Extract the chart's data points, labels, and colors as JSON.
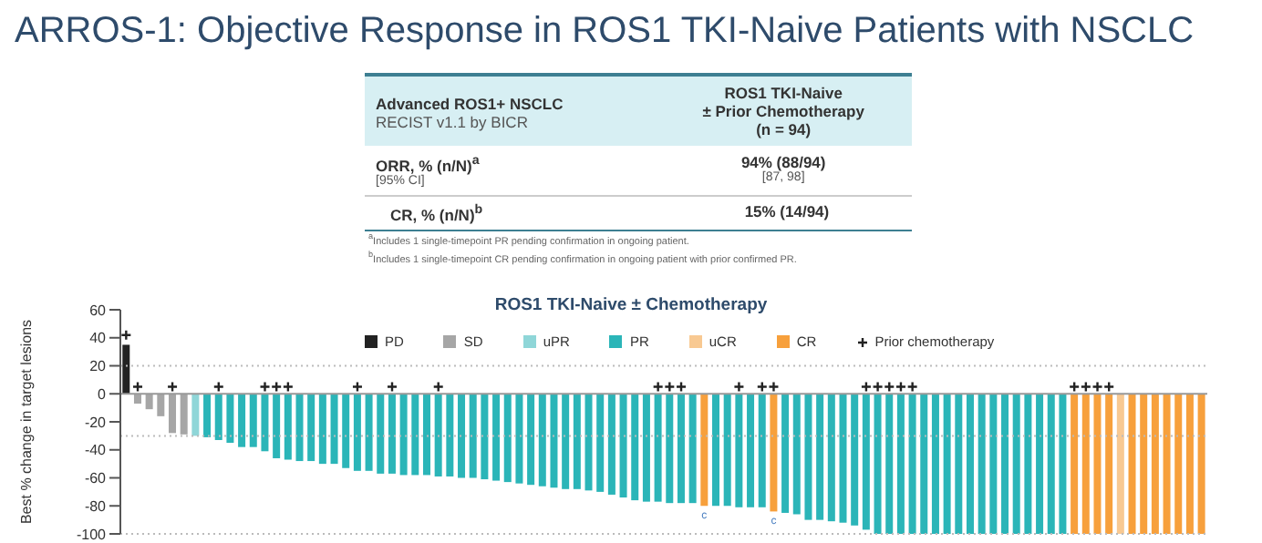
{
  "chart_data": {
    "type": "bar",
    "title": "ARROS-1: Objective Response in ROS1 TKI-Naive Patients with NSCLC",
    "subtitle": "ROS1 TKI-Naive ± Chemotherapy",
    "ylabel": "Best % change in target lesions",
    "categories": [
      null,
      null,
      null,
      null,
      null,
      null,
      null,
      null,
      null,
      null,
      null,
      null,
      null,
      null,
      null,
      null,
      null,
      null,
      null,
      null,
      null,
      null,
      null,
      null,
      null,
      null,
      null,
      null,
      null,
      null,
      null,
      null,
      null,
      null,
      null,
      null,
      null,
      null,
      null,
      null,
      null,
      null,
      null,
      null,
      null,
      null,
      null,
      null,
      null,
      null,
      null,
      null,
      null,
      null,
      null,
      null,
      null,
      null,
      null,
      null,
      null,
      null,
      null,
      null,
      null,
      null,
      null,
      null,
      null,
      null,
      null,
      null,
      null,
      null,
      null,
      null,
      null,
      null,
      null,
      null,
      null,
      null,
      null,
      null,
      null,
      null,
      null,
      null,
      null,
      null,
      null,
      null,
      null,
      null
    ],
    "stacked": true,
    "series": [
      {
        "name": "PD",
        "color": "#222222",
        "values": [
          35,
          null,
          null,
          null,
          null,
          null,
          null,
          null,
          null,
          null,
          null,
          null,
          null,
          null,
          null,
          null,
          null,
          null,
          null,
          null,
          null,
          null,
          null,
          null,
          null,
          null,
          null,
          null,
          null,
          null,
          null,
          null,
          null,
          null,
          null,
          null,
          null,
          null,
          null,
          null,
          null,
          null,
          null,
          null,
          null,
          null,
          null,
          null,
          null,
          null,
          null,
          null,
          null,
          null,
          null,
          null,
          null,
          null,
          null,
          null,
          null,
          null,
          null,
          null,
          null,
          null,
          null,
          null,
          null,
          null,
          null,
          null,
          null,
          null,
          null,
          null,
          null,
          null,
          null,
          null,
          null,
          null,
          null,
          null,
          null,
          null,
          null,
          null,
          null,
          null,
          null,
          null,
          null,
          null
        ]
      },
      {
        "name": "SD",
        "color": "#a6a6a6",
        "values": [
          null,
          -7,
          -11,
          -16,
          -28,
          -29,
          null,
          null,
          null,
          null,
          null,
          null,
          null,
          null,
          null,
          null,
          null,
          null,
          null,
          null,
          null,
          null,
          null,
          null,
          null,
          null,
          null,
          null,
          null,
          null,
          null,
          null,
          null,
          null,
          null,
          null,
          null,
          null,
          null,
          null,
          null,
          null,
          null,
          null,
          null,
          null,
          null,
          null,
          null,
          null,
          null,
          null,
          null,
          null,
          null,
          null,
          null,
          null,
          null,
          null,
          null,
          null,
          null,
          null,
          null,
          null,
          null,
          null,
          null,
          null,
          null,
          null,
          null,
          null,
          null,
          null,
          null,
          null,
          null,
          null,
          null,
          null,
          null,
          null,
          null,
          null,
          null,
          null,
          null,
          null,
          null,
          null,
          null,
          null
        ]
      },
      {
        "name": "uPR",
        "color": "#8fd6d8",
        "values": [
          null,
          null,
          null,
          null,
          null,
          null,
          -30,
          null,
          null,
          null,
          null,
          null,
          null,
          null,
          null,
          null,
          null,
          null,
          null,
          null,
          null,
          null,
          null,
          null,
          null,
          null,
          null,
          null,
          null,
          null,
          null,
          null,
          null,
          null,
          null,
          null,
          null,
          null,
          null,
          null,
          null,
          null,
          null,
          null,
          null,
          null,
          null,
          null,
          null,
          null,
          null,
          null,
          null,
          null,
          null,
          null,
          null,
          null,
          null,
          null,
          null,
          null,
          null,
          null,
          null,
          null,
          null,
          null,
          null,
          null,
          null,
          null,
          null,
          null,
          null,
          null,
          null,
          null,
          null,
          null,
          null,
          null,
          null,
          null,
          null,
          null,
          null,
          null,
          null,
          null,
          null,
          null,
          null,
          null
        ]
      },
      {
        "name": "PR",
        "color": "#2bb5b8",
        "values": [
          null,
          null,
          null,
          null,
          null,
          null,
          null,
          -31,
          -33,
          -35,
          -38,
          -38,
          -41,
          -46,
          -47,
          -48,
          -48,
          -50,
          -50,
          -53,
          -55,
          -55,
          -57,
          -57,
          -58,
          -58,
          -58,
          -59,
          -59,
          -60,
          -60,
          -61,
          -62,
          -63,
          -64,
          -65,
          -66,
          -67,
          -68,
          -68,
          -69,
          -70,
          -72,
          -74,
          -76,
          -77,
          -77,
          -78,
          -78,
          -78,
          null,
          -80,
          -80,
          -81,
          -81,
          -81,
          null,
          -85,
          -86,
          -90,
          -90,
          -91,
          -92,
          -94,
          -97,
          -100,
          -100,
          -100,
          -100,
          -100,
          -100,
          -100,
          -100,
          -100,
          -100,
          -100,
          -100,
          -100,
          -100,
          -100,
          -100,
          -100,
          null,
          null,
          null,
          null,
          null,
          null,
          null,
          null,
          null,
          null,
          null,
          null
        ]
      },
      {
        "name": "uCR",
        "color": "#f8c992",
        "values": [
          null,
          null,
          null,
          null,
          null,
          null,
          null,
          null,
          null,
          null,
          null,
          null,
          null,
          null,
          null,
          null,
          null,
          null,
          null,
          null,
          null,
          null,
          null,
          null,
          null,
          null,
          null,
          null,
          null,
          null,
          null,
          null,
          null,
          null,
          null,
          null,
          null,
          null,
          null,
          null,
          null,
          null,
          null,
          null,
          null,
          null,
          null,
          null,
          null,
          null,
          null,
          null,
          null,
          null,
          null,
          null,
          null,
          null,
          null,
          null,
          null,
          null,
          null,
          null,
          null,
          null,
          null,
          null,
          null,
          null,
          null,
          null,
          null,
          null,
          null,
          null,
          null,
          null,
          null,
          null,
          null,
          null,
          null,
          null,
          null,
          null,
          -100,
          null,
          null,
          null,
          null,
          null,
          null,
          null
        ]
      },
      {
        "name": "CR",
        "color": "#f7a03c",
        "values": [
          null,
          null,
          null,
          null,
          null,
          null,
          null,
          null,
          null,
          null,
          null,
          null,
          null,
          null,
          null,
          null,
          null,
          null,
          null,
          null,
          null,
          null,
          null,
          null,
          null,
          null,
          null,
          null,
          null,
          null,
          null,
          null,
          null,
          null,
          null,
          null,
          null,
          null,
          null,
          null,
          null,
          null,
          null,
          null,
          null,
          null,
          null,
          null,
          null,
          null,
          -80,
          null,
          null,
          null,
          null,
          null,
          -84,
          null,
          null,
          null,
          null,
          null,
          null,
          null,
          null,
          null,
          null,
          null,
          null,
          null,
          null,
          null,
          null,
          null,
          null,
          null,
          null,
          null,
          null,
          null,
          null,
          null,
          -100,
          -100,
          -100,
          -100,
          null,
          -100,
          -100,
          -100,
          -100,
          -100,
          -100,
          -100
        ],
        "value_labels": [
          null,
          null,
          null,
          null,
          null,
          null,
          null,
          null,
          null,
          null,
          null,
          null,
          null,
          null,
          null,
          null,
          null,
          null,
          null,
          null,
          null,
          null,
          null,
          null,
          null,
          null,
          null,
          null,
          null,
          null,
          null,
          null,
          null,
          null,
          null,
          null,
          null,
          null,
          null,
          null,
          null,
          null,
          null,
          null,
          null,
          null,
          null,
          null,
          null,
          null,
          "c",
          null,
          null,
          null,
          null,
          null,
          "c",
          null,
          null,
          null,
          null,
          null,
          null,
          null,
          null,
          null,
          null,
          null,
          null,
          null,
          null,
          null,
          null,
          null,
          null,
          null,
          null,
          null,
          null,
          null,
          null,
          null,
          null,
          null,
          null,
          null,
          null,
          null,
          null,
          null,
          null,
          null,
          null,
          null
        ]
      },
      {
        "name": "Prior chemotherapy",
        "type": "scatter",
        "color": "#222222",
        "values": [
          42,
          5,
          null,
          null,
          5,
          null,
          null,
          null,
          5,
          null,
          null,
          null,
          5,
          5,
          5,
          null,
          null,
          null,
          null,
          null,
          5,
          null,
          null,
          5,
          null,
          null,
          null,
          5,
          null,
          null,
          null,
          null,
          null,
          null,
          null,
          null,
          null,
          null,
          null,
          null,
          null,
          null,
          null,
          null,
          null,
          null,
          5,
          5,
          5,
          null,
          null,
          null,
          null,
          5,
          null,
          5,
          5,
          null,
          null,
          null,
          null,
          null,
          null,
          null,
          5,
          5,
          5,
          5,
          5,
          null,
          null,
          null,
          null,
          null,
          null,
          null,
          null,
          null,
          null,
          null,
          null,
          null,
          5,
          5,
          5,
          5,
          null,
          null,
          null,
          null,
          null,
          null,
          null,
          null
        ]
      }
    ],
    "marker": "cross",
    "ylim": [
      -100,
      60
    ],
    "yticks": [
      60,
      40,
      20,
      0,
      -20,
      -40,
      -60,
      -80,
      -100
    ],
    "ref_lines": [
      {
        "axis": "y",
        "value": 0,
        "color": "#999999",
        "line_style": "solid"
      },
      {
        "axis": "y",
        "value": 20,
        "color": "#bbbbbb",
        "line_style": "dotted"
      },
      {
        "axis": "y",
        "value": -30,
        "color": "#bbbbbb",
        "line_style": "dotted"
      },
      {
        "axis": "y",
        "value": -100,
        "color": "#bbbbbb",
        "line_style": "dotted"
      }
    ],
    "legend": "top",
    "annotations": [
      "Advanced ROS1+ NSCLC",
      "RECIST v1.1 by BICR",
      "ROS1 TKI-Naive",
      "± Prior Chemotherapy",
      "(n = 94)",
      "ORR, % (n/N)$^{a}$",
      "[95% CI]",
      "94% (88/94)",
      "[87, 98]",
      "CR, % (n/N)$^{b}$",
      "15% (14/94)",
      "$^{a}$Includes 1 single-timepoint PR pending confirmation in ongoing patient.",
      "$^{b}$Includes 1 single-timepoint CR pending confirmation in ongoing patient with prior confirmed PR."
    ]
  }
}
